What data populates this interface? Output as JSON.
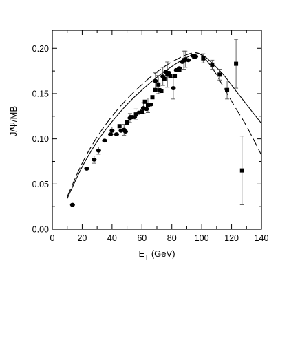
{
  "chart_data": {
    "type": "scatter",
    "title": "",
    "xlabel": "E",
    "xlabel_sub": "T",
    "xlabel_unit": " (GeV)",
    "ylabel": "J/Ψ/MB",
    "xlim": [
      0,
      140
    ],
    "ylim": [
      0.0,
      0.22
    ],
    "x_ticks": [
      0,
      20,
      40,
      60,
      80,
      100,
      120,
      140
    ],
    "x_tick_labels": [
      "0",
      "20",
      "40",
      "60",
      "80",
      "100",
      "120",
      "140"
    ],
    "y_ticks": [
      0.0,
      0.05,
      0.1,
      0.15,
      0.2
    ],
    "y_tick_labels": [
      "0.00",
      "0.05",
      "0.10",
      "0.15",
      "0.20"
    ],
    "grid": false,
    "series": [
      {
        "marker": "circle",
        "points": [
          [
            13.5,
            0.027
          ],
          [
            23,
            0.067
          ],
          [
            28,
            0.077
          ],
          [
            31,
            0.087
          ],
          [
            35,
            0.098
          ],
          [
            39,
            0.105
          ],
          [
            40,
            0.109
          ],
          [
            43,
            0.105
          ],
          [
            46,
            0.109
          ],
          [
            48,
            0.11
          ],
          [
            49,
            0.108
          ],
          [
            52,
            0.123
          ],
          [
            55,
            0.124
          ],
          [
            58,
            0.129
          ],
          [
            61,
            0.134
          ],
          [
            63,
            0.133
          ],
          [
            66,
            0.138
          ],
          [
            69,
            0.164
          ],
          [
            72,
            0.154
          ],
          [
            74,
            0.169
          ],
          [
            76,
            0.174
          ],
          [
            78,
            0.173
          ],
          [
            81,
            0.156
          ],
          [
            83,
            0.176
          ],
          [
            85,
            0.178
          ],
          [
            87,
            0.185
          ],
          [
            89,
            0.188
          ],
          [
            91,
            0.187
          ],
          [
            94,
            0.192
          ],
          [
            96,
            0.191
          ]
        ],
        "err": [
          [
            28,
            0.077,
            0.004
          ],
          [
            31,
            0.087,
            0.004
          ],
          [
            40,
            0.109,
            0.004
          ],
          [
            48,
            0.11,
            0.006
          ],
          [
            52,
            0.123,
            0.005
          ],
          [
            61,
            0.134,
            0.006
          ],
          [
            69,
            0.164,
            0.009
          ],
          [
            74,
            0.169,
            0.01
          ],
          [
            81,
            0.156,
            0.012
          ],
          [
            89,
            0.188,
            0.009
          ]
        ]
      },
      {
        "marker": "square",
        "points": [
          [
            45,
            0.114
          ],
          [
            50,
            0.118
          ],
          [
            53,
            0.124
          ],
          [
            56,
            0.127
          ],
          [
            60,
            0.13
          ],
          [
            62,
            0.141
          ],
          [
            64,
            0.137
          ],
          [
            67,
            0.146
          ],
          [
            69,
            0.154
          ],
          [
            71,
            0.16
          ],
          [
            73,
            0.153
          ],
          [
            75,
            0.166
          ],
          [
            77,
            0.171
          ],
          [
            79,
            0.169
          ],
          [
            82,
            0.169
          ],
          [
            85,
            0.176
          ],
          [
            88,
            0.187
          ],
          [
            95,
            0.191
          ],
          [
            101,
            0.189
          ],
          [
            107,
            0.182
          ],
          [
            112,
            0.171
          ],
          [
            117,
            0.154
          ],
          [
            123,
            0.183
          ],
          [
            127,
            0.065
          ]
        ],
        "err": [
          [
            56,
            0.127,
            0.006
          ],
          [
            64,
            0.137,
            0.008
          ],
          [
            71,
            0.16,
            0.01
          ],
          [
            77,
            0.171,
            0.014
          ],
          [
            88,
            0.187,
            0.01
          ],
          [
            101,
            0.189,
            0.005
          ],
          [
            107,
            0.182,
            0.005
          ],
          [
            112,
            0.171,
            0.006
          ],
          [
            117,
            0.154,
            0.01
          ],
          [
            123,
            0.183,
            0.027
          ],
          [
            127,
            0.065,
            0.038
          ]
        ]
      }
    ],
    "curves": [
      {
        "style": "solid",
        "points": [
          [
            10,
            0.034
          ],
          [
            20,
            0.069
          ],
          [
            30,
            0.097
          ],
          [
            40,
            0.119
          ],
          [
            50,
            0.138
          ],
          [
            60,
            0.154
          ],
          [
            70,
            0.168
          ],
          [
            80,
            0.18
          ],
          [
            90,
            0.19
          ],
          [
            97,
            0.194
          ],
          [
            102,
            0.191
          ],
          [
            108,
            0.182
          ],
          [
            115,
            0.17
          ],
          [
            122,
            0.155
          ],
          [
            130,
            0.138
          ],
          [
            140,
            0.117
          ]
        ]
      },
      {
        "style": "dashed",
        "points": [
          [
            10,
            0.036
          ],
          [
            20,
            0.073
          ],
          [
            30,
            0.102
          ],
          [
            40,
            0.125
          ],
          [
            50,
            0.144
          ],
          [
            60,
            0.16
          ],
          [
            70,
            0.174
          ],
          [
            80,
            0.185
          ],
          [
            90,
            0.193
          ],
          [
            97,
            0.195
          ],
          [
            102,
            0.189
          ],
          [
            108,
            0.176
          ],
          [
            115,
            0.156
          ],
          [
            122,
            0.136
          ],
          [
            130,
            0.114
          ],
          [
            140,
            0.082
          ]
        ]
      }
    ]
  }
}
